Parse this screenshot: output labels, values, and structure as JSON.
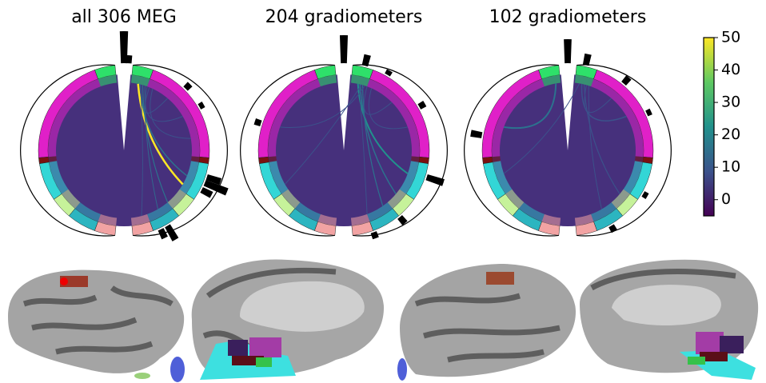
{
  "chart_data": [
    {
      "type": "connectivity",
      "title": "all 306 MEG"
    },
    {
      "type": "connectivity",
      "title": "204 gradiometers"
    },
    {
      "type": "connectivity",
      "title": "102 gradiometers"
    },
    {
      "type": "colorbar",
      "colormap": "viridis",
      "ylim": [
        -5,
        50
      ],
      "yticks": [
        0,
        10,
        20,
        30,
        40,
        50
      ]
    }
  ]
}
